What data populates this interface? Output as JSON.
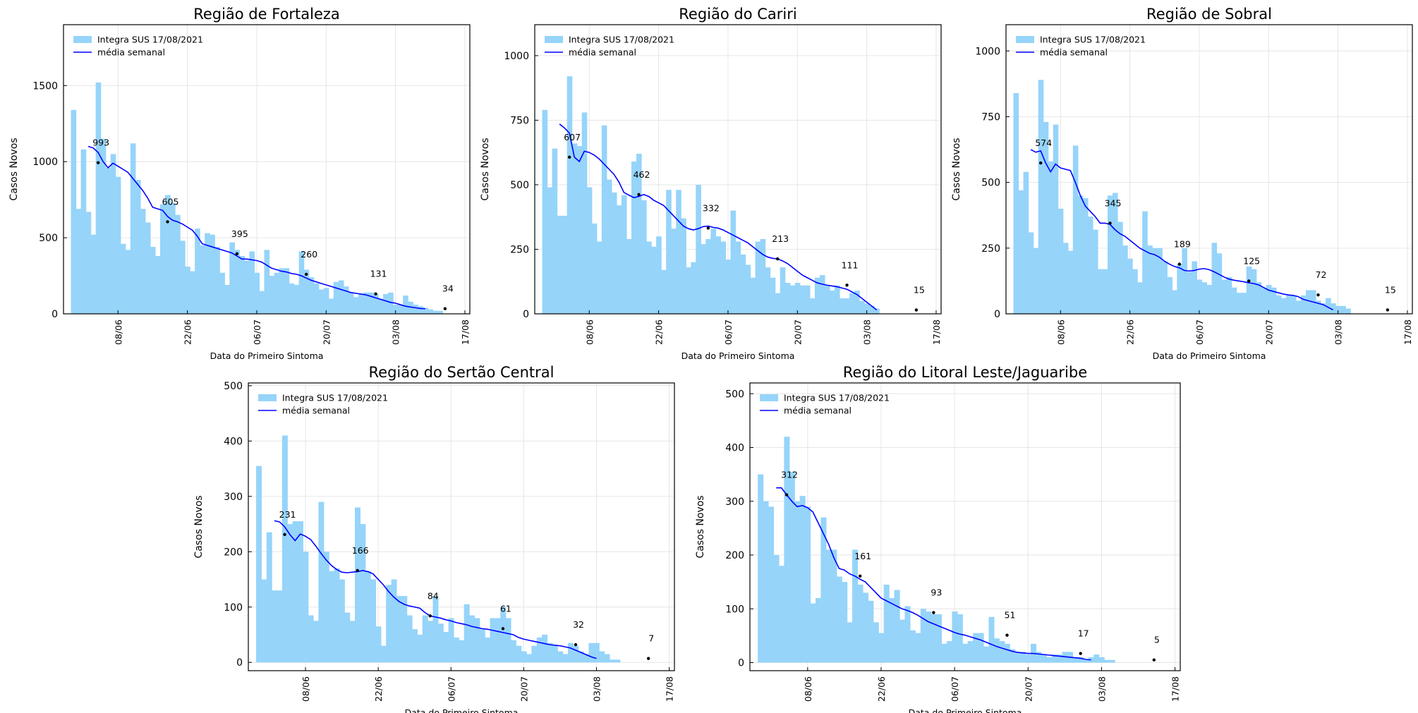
{
  "colors": {
    "bar": "#96d4fa",
    "line": "#0000ff",
    "marker": "#000000",
    "grid": "#e6e6e6",
    "axis": "#000000"
  },
  "legend": {
    "bars_label": "Integra SUS 17/08/2021",
    "line_label": "média  semanal"
  },
  "chart_data": [
    {
      "type": "bar",
      "title": "Região de Fortaleza",
      "xlabel": "Data do Primeiro Sintoma",
      "ylabel": "Casos Novos",
      "ylim": [
        0,
        1900
      ],
      "yticks": [
        0,
        500,
        1000,
        1500
      ],
      "xticks": [
        "08/06",
        "22/06",
        "06/07",
        "20/07",
        "03/08",
        "17/08"
      ],
      "legend_position": "top-left",
      "grid": true,
      "series": [
        {
          "name": "Integra SUS 17/08/2021",
          "type": "bar",
          "x_start": "2021-05-30",
          "values": [
            1340,
            690,
            1080,
            670,
            520,
            1520,
            1150,
            960,
            1050,
            900,
            460,
            420,
            1120,
            880,
            690,
            600,
            440,
            380,
            720,
            780,
            730,
            650,
            480,
            310,
            280,
            560,
            450,
            530,
            520,
            440,
            270,
            190,
            470,
            420,
            380,
            350,
            410,
            270,
            150,
            420,
            250,
            270,
            300,
            300,
            200,
            190,
            410,
            290,
            240,
            200,
            160,
            170,
            100,
            210,
            220,
            180,
            140,
            110,
            130,
            140,
            140,
            130,
            100,
            130,
            140,
            60,
            60,
            120,
            80,
            60,
            50,
            40,
            30,
            20,
            20
          ]
        },
        {
          "name": "média  semanal",
          "type": "line",
          "x_start": "2021-06-02",
          "values": [
            1100,
            1090,
            1060,
            1000,
            960,
            990,
            970,
            950,
            930,
            890,
            850,
            810,
            760,
            700,
            690,
            680,
            640,
            615,
            605,
            590,
            570,
            550,
            510,
            460,
            450,
            440,
            430,
            420,
            410,
            400,
            380,
            360,
            360,
            355,
            350,
            340,
            320,
            300,
            290,
            280,
            275,
            265,
            260,
            250,
            235,
            220,
            210,
            200,
            190,
            180,
            170,
            160,
            150,
            140,
            135,
            130,
            125,
            115,
            105,
            95,
            85,
            75,
            70,
            60,
            50,
            45,
            40,
            35,
            34
          ]
        },
        {
          "name": "markers",
          "type": "scatter",
          "points": [
            [
              "2021-06-04",
              993
            ],
            [
              "2021-06-18",
              605
            ],
            [
              "2021-07-02",
              395
            ],
            [
              "2021-07-16",
              260
            ],
            [
              "2021-07-30",
              131
            ],
            [
              "2021-08-13",
              34
            ]
          ]
        }
      ]
    },
    {
      "type": "bar",
      "title": "Região do Cariri",
      "xlabel": "Data do Primeiro Sintoma",
      "ylabel": "Casos Novos",
      "ylim": [
        0,
        1120
      ],
      "yticks": [
        0,
        250,
        500,
        750,
        1000
      ],
      "xticks": [
        "08/06",
        "22/06",
        "06/07",
        "20/07",
        "03/08",
        "17/08"
      ],
      "legend_position": "top-left",
      "grid": true,
      "series": [
        {
          "name": "Integra SUS 17/08/2021",
          "type": "bar",
          "x_start": "2021-05-30",
          "values": [
            790,
            490,
            640,
            380,
            380,
            920,
            660,
            650,
            780,
            490,
            350,
            280,
            730,
            520,
            470,
            420,
            460,
            290,
            590,
            620,
            440,
            280,
            260,
            300,
            170,
            480,
            330,
            480,
            370,
            180,
            200,
            500,
            270,
            290,
            330,
            300,
            280,
            210,
            400,
            280,
            230,
            190,
            140,
            280,
            290,
            180,
            140,
            80,
            180,
            120,
            110,
            120,
            110,
            110,
            60,
            140,
            150,
            110,
            90,
            110,
            60,
            60,
            80,
            90,
            50,
            40,
            30,
            20
          ]
        },
        {
          "name": "média  semanal",
          "type": "line",
          "x_start": "2021-06-02",
          "values": [
            735,
            720,
            700,
            607,
            590,
            630,
            625,
            615,
            600,
            580,
            560,
            540,
            510,
            470,
            460,
            450,
            455,
            462,
            455,
            440,
            430,
            420,
            400,
            380,
            360,
            340,
            330,
            325,
            330,
            338,
            340,
            335,
            332,
            325,
            315,
            305,
            295,
            285,
            275,
            260,
            245,
            230,
            220,
            215,
            213,
            205,
            195,
            180,
            165,
            150,
            140,
            130,
            120,
            115,
            111,
            108,
            105,
            100,
            95,
            85,
            75,
            60,
            45,
            30,
            15
          ]
        },
        {
          "name": "markers",
          "type": "scatter",
          "points": [
            [
              "2021-06-04",
              607
            ],
            [
              "2021-06-18",
              462
            ],
            [
              "2021-07-02",
              332
            ],
            [
              "2021-07-16",
              213
            ],
            [
              "2021-07-30",
              111
            ],
            [
              "2021-08-13",
              15
            ]
          ]
        }
      ]
    },
    {
      "type": "bar",
      "title": "Região de Sobral",
      "xlabel": "Data do Primeiro Sintoma",
      "ylabel": "Casos Novos",
      "ylim": [
        0,
        1100
      ],
      "yticks": [
        0,
        250,
        500,
        750,
        1000
      ],
      "xticks": [
        "08/06",
        "22/06",
        "06/07",
        "20/07",
        "03/08",
        "17/08"
      ],
      "legend_position": "top-left",
      "grid": true,
      "series": [
        {
          "name": "Integra SUS 17/08/2021",
          "type": "bar",
          "x_start": "2021-05-30",
          "values": [
            840,
            470,
            540,
            310,
            250,
            890,
            730,
            580,
            720,
            400,
            270,
            240,
            640,
            450,
            440,
            370,
            320,
            170,
            170,
            450,
            460,
            350,
            260,
            210,
            170,
            120,
            390,
            260,
            250,
            250,
            200,
            140,
            90,
            190,
            250,
            160,
            200,
            130,
            120,
            110,
            270,
            230,
            130,
            140,
            100,
            80,
            80,
            180,
            170,
            120,
            100,
            110,
            100,
            70,
            60,
            70,
            70,
            50,
            70,
            90,
            90,
            50,
            40,
            60,
            40,
            30,
            30,
            20
          ]
        },
        {
          "name": "média  semanal",
          "type": "line",
          "x_start": "2021-06-02",
          "values": [
            625,
            615,
            620,
            574,
            540,
            570,
            555,
            550,
            545,
            500,
            450,
            410,
            390,
            370,
            345,
            345,
            340,
            320,
            305,
            295,
            280,
            265,
            250,
            240,
            230,
            225,
            215,
            200,
            189,
            180,
            175,
            165,
            163,
            165,
            170,
            172,
            168,
            160,
            150,
            140,
            132,
            128,
            125,
            122,
            118,
            115,
            110,
            100,
            90,
            85,
            80,
            75,
            72,
            70,
            65,
            55,
            50,
            45,
            40,
            35,
            25,
            15
          ]
        },
        {
          "name": "markers",
          "type": "scatter",
          "points": [
            [
              "2021-06-04",
              574
            ],
            [
              "2021-06-18",
              345
            ],
            [
              "2021-07-02",
              189
            ],
            [
              "2021-07-16",
              125
            ],
            [
              "2021-07-30",
              72
            ],
            [
              "2021-08-13",
              15
            ]
          ]
        }
      ]
    },
    {
      "type": "bar",
      "title": "Região do Sertão Central",
      "xlabel": "Data do Primeiro Sintoma",
      "ylabel": "Casos Novos",
      "ylim": [
        -15,
        505
      ],
      "yticks": [
        0,
        100,
        200,
        300,
        400,
        500
      ],
      "xticks": [
        "08/06",
        "22/06",
        "06/07",
        "20/07",
        "03/08",
        "17/08"
      ],
      "legend_position": "top-left",
      "grid": true,
      "series": [
        {
          "name": "Integra SUS 17/08/2021",
          "type": "bar",
          "x_start": "2021-05-30",
          "values": [
            355,
            150,
            235,
            130,
            130,
            410,
            250,
            255,
            255,
            200,
            85,
            75,
            290,
            200,
            165,
            170,
            150,
            90,
            75,
            280,
            250,
            165,
            150,
            65,
            30,
            140,
            150,
            120,
            120,
            85,
            60,
            50,
            85,
            75,
            120,
            70,
            55,
            80,
            45,
            40,
            105,
            85,
            80,
            60,
            45,
            80,
            80,
            100,
            80,
            40,
            30,
            20,
            15,
            30,
            45,
            50,
            35,
            30,
            20,
            15,
            35,
            30,
            20,
            15,
            35,
            35,
            20,
            15,
            5,
            5
          ]
        },
        {
          "name": "média  semanal",
          "type": "line",
          "x_start": "2021-06-02",
          "values": [
            256,
            254,
            245,
            231,
            220,
            232,
            228,
            222,
            210,
            197,
            185,
            175,
            168,
            163,
            162,
            163,
            164,
            166,
            164,
            160,
            150,
            140,
            128,
            118,
            110,
            105,
            102,
            100,
            98,
            90,
            84,
            82,
            80,
            77,
            75,
            72,
            70,
            68,
            65,
            63,
            61,
            60,
            58,
            56,
            54,
            52,
            50,
            45,
            42,
            40,
            38,
            36,
            34,
            32,
            31,
            30,
            28,
            26,
            22,
            18,
            14,
            10,
            7
          ]
        },
        {
          "name": "markers",
          "type": "scatter",
          "points": [
            [
              "2021-06-04",
              231
            ],
            [
              "2021-06-18",
              166
            ],
            [
              "2021-07-02",
              84
            ],
            [
              "2021-07-16",
              61
            ],
            [
              "2021-07-30",
              32
            ],
            [
              "2021-08-13",
              7
            ]
          ]
        }
      ]
    },
    {
      "type": "bar",
      "title": "Região do Litoral Leste/Jaguaribe",
      "xlabel": "Data do Primeiro Sintoma",
      "ylabel": "Casos Novos",
      "ylim": [
        -15,
        520
      ],
      "yticks": [
        0,
        100,
        200,
        300,
        400,
        500
      ],
      "xticks": [
        "08/06",
        "22/06",
        "06/07",
        "20/07",
        "03/08",
        "17/08"
      ],
      "legend_position": "top-left",
      "grid": true,
      "series": [
        {
          "name": "Integra SUS 17/08/2021",
          "type": "bar",
          "x_start": "2021-05-30",
          "values": [
            350,
            300,
            290,
            200,
            180,
            420,
            355,
            300,
            310,
            290,
            110,
            120,
            270,
            210,
            210,
            160,
            150,
            75,
            210,
            145,
            130,
            115,
            75,
            55,
            145,
            120,
            135,
            80,
            105,
            60,
            55,
            100,
            95,
            90,
            90,
            35,
            40,
            95,
            90,
            35,
            40,
            55,
            55,
            30,
            85,
            45,
            40,
            35,
            25,
            20,
            20,
            15,
            35,
            20,
            15,
            10,
            15,
            15,
            20,
            20,
            10,
            10,
            5,
            10,
            15,
            10,
            5,
            5
          ]
        },
        {
          "name": "média  semanal",
          "type": "line",
          "x_start": "2021-06-02",
          "values": [
            325,
            325,
            312,
            300,
            290,
            292,
            288,
            280,
            260,
            240,
            220,
            195,
            175,
            172,
            165,
            161,
            155,
            150,
            140,
            130,
            120,
            115,
            110,
            105,
            100,
            97,
            93,
            88,
            82,
            76,
            72,
            68,
            64,
            60,
            56,
            53,
            51,
            48,
            45,
            42,
            38,
            34,
            30,
            27,
            24,
            21,
            19,
            18,
            17,
            17,
            16,
            15,
            14,
            13,
            12,
            11,
            10,
            9,
            8,
            6,
            5
          ]
        },
        {
          "name": "markers",
          "type": "scatter",
          "points": [
            [
              "2021-06-04",
              312
            ],
            [
              "2021-06-18",
              161
            ],
            [
              "2021-07-02",
              93
            ],
            [
              "2021-07-16",
              51
            ],
            [
              "2021-07-30",
              17
            ],
            [
              "2021-08-13",
              5
            ]
          ]
        }
      ]
    }
  ]
}
